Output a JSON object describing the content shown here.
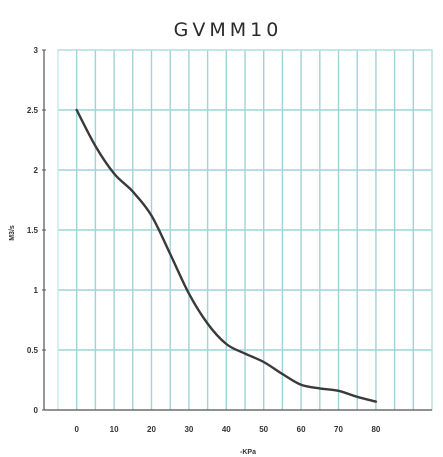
{
  "chart_data": {
    "type": "line",
    "title": "GVMM10",
    "xlabel": "-KPa",
    "ylabel": "M3/s",
    "xlim": [
      -5,
      95
    ],
    "ylim": [
      0,
      3
    ],
    "x_ticks": [
      0,
      10,
      20,
      30,
      40,
      50,
      60,
      70,
      80
    ],
    "x_tick_labels": [
      "0",
      "10",
      "20",
      "30",
      "40",
      "50",
      "60",
      "70",
      "80"
    ],
    "y_ticks": [
      0,
      0.5,
      1,
      1.5,
      2,
      2.5,
      3
    ],
    "y_tick_labels": [
      "0",
      "0.5",
      "1",
      "1.5",
      "2",
      "2.5",
      "3"
    ],
    "grid": true,
    "colors": {
      "line": "#3a3a3a",
      "grid": "#9fd3d8",
      "frame": "#bfe3e6"
    },
    "series": [
      {
        "x": [
          0,
          5,
          10,
          15,
          20,
          25,
          30,
          35,
          40,
          45,
          50,
          55,
          60,
          65,
          70,
          75,
          80
        ],
        "y": [
          2.5,
          2.2,
          1.97,
          1.82,
          1.62,
          1.3,
          0.97,
          0.72,
          0.55,
          0.47,
          0.4,
          0.3,
          0.21,
          0.18,
          0.16,
          0.11,
          0.07
        ]
      }
    ]
  }
}
